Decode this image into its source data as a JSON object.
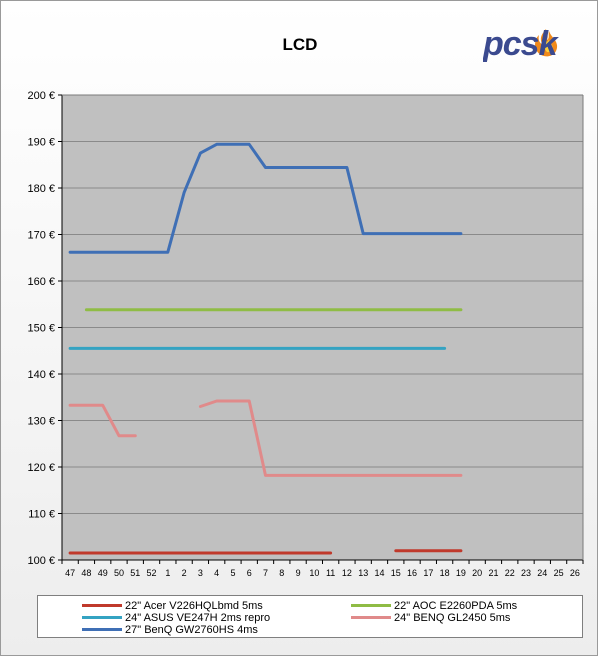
{
  "chart_data": {
    "type": "line",
    "title": "LCD",
    "xlabel": "",
    "ylabel": "",
    "ylim": [
      100,
      200
    ],
    "y_tick_step": 10,
    "y_tick_suffix": " €",
    "categories": [
      "47",
      "48",
      "49",
      "50",
      "51",
      "52",
      "1",
      "2",
      "3",
      "4",
      "5",
      "6",
      "7",
      "8",
      "9",
      "10",
      "11",
      "12",
      "13",
      "14",
      "15",
      "16",
      "17",
      "18",
      "19",
      "20",
      "21",
      "22",
      "23",
      "24",
      "25",
      "26"
    ],
    "grid": "horizontal",
    "legend_position": "bottom",
    "series": [
      {
        "name": "22\" Acer V226HQLbmd 5ms",
        "color": "#c0392b",
        "values": [
          101.5,
          101.5,
          101.5,
          101.5,
          101.5,
          101.5,
          101.5,
          101.5,
          101.5,
          101.5,
          101.5,
          101.5,
          101.5,
          101.5,
          101.5,
          101.5,
          101.5,
          null,
          null,
          null,
          102,
          102,
          102,
          102,
          102,
          null,
          null,
          null,
          null,
          null,
          null,
          null
        ]
      },
      {
        "name": "22\" AOC E2260PDA 5ms",
        "color": "#8fbc45",
        "values": [
          null,
          153.8,
          153.8,
          153.8,
          153.8,
          153.8,
          153.8,
          153.8,
          153.8,
          153.8,
          153.8,
          153.8,
          153.8,
          153.8,
          153.8,
          153.8,
          153.8,
          153.8,
          153.8,
          153.8,
          153.8,
          153.8,
          153.8,
          153.8,
          153.8,
          null,
          null,
          null,
          null,
          null,
          null,
          null
        ]
      },
      {
        "name": "24\" ASUS VE247H 2ms repro",
        "color": "#34a3c2",
        "values": [
          145.5,
          145.5,
          145.5,
          145.5,
          145.5,
          145.5,
          145.5,
          145.5,
          145.5,
          145.5,
          145.5,
          145.5,
          145.5,
          145.5,
          145.5,
          145.5,
          145.5,
          145.5,
          145.5,
          145.5,
          145.5,
          145.5,
          145.5,
          145.5,
          null,
          null,
          null,
          null,
          null,
          null,
          null,
          null
        ]
      },
      {
        "name": "24\" BENQ GL2450 5ms",
        "color": "#e08a8a",
        "values": [
          133.3,
          133.3,
          133.3,
          126.7,
          126.7,
          null,
          null,
          null,
          133,
          134.2,
          134.2,
          134.2,
          118.2,
          118.2,
          118.2,
          118.2,
          118.2,
          118.2,
          118.2,
          118.2,
          118.2,
          118.2,
          118.2,
          118.2,
          118.2,
          null,
          null,
          null,
          null,
          null,
          null,
          null
        ]
      },
      {
        "name": "27\" BenQ GW2760HS 4ms",
        "color": "#3f6fb5",
        "values": [
          166.2,
          166.2,
          166.2,
          166.2,
          166.2,
          166.2,
          166.2,
          179,
          187.5,
          189.4,
          189.4,
          189.4,
          184.4,
          184.4,
          184.4,
          184.4,
          184.4,
          184.4,
          170.2,
          170.2,
          170.2,
          170.2,
          170.2,
          170.2,
          170.2,
          null,
          null,
          null,
          null,
          null,
          null,
          null
        ]
      }
    ]
  },
  "logo": {
    "text": "pcsk",
    "color": "#3b4a8f",
    "flame_color": "#f08a1c"
  }
}
